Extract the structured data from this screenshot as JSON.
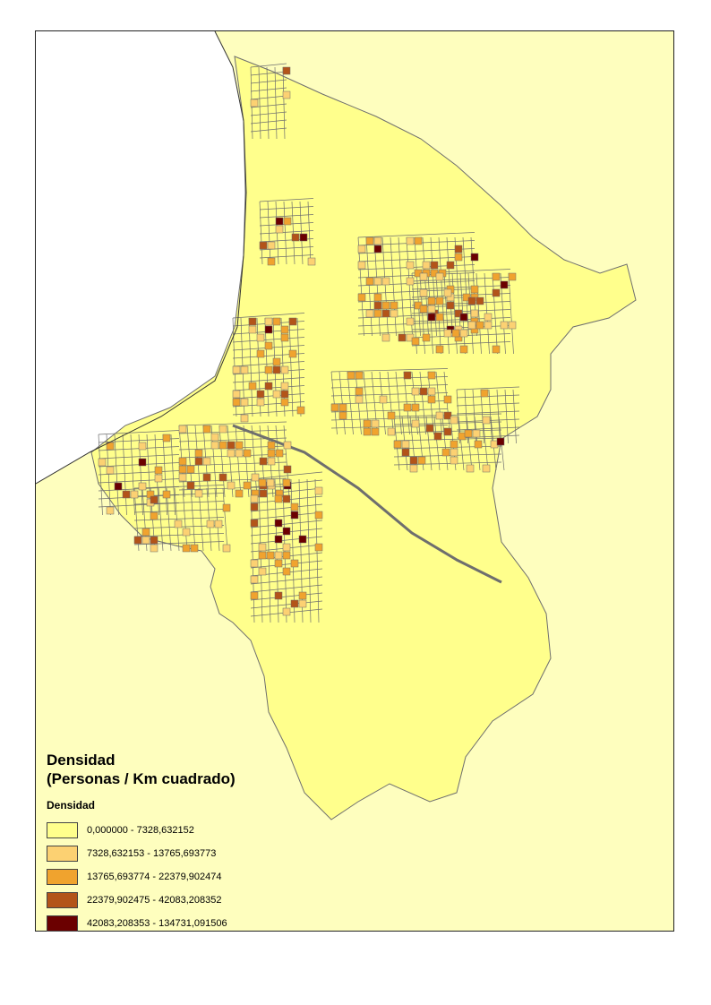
{
  "map": {
    "colors": {
      "sea": "#ffffff",
      "land": "#fefebe",
      "street": "#6e6e6e"
    }
  },
  "legend": {
    "title": "Densidad\n(Personas / Km cuadrado)",
    "subtitle": "Densidad",
    "classes": [
      {
        "label": "0,000000 - 7328,632152",
        "color": "#ffff8c"
      },
      {
        "label": "7328,632153 - 13765,693773",
        "color": "#fcd172"
      },
      {
        "label": "13765,693774 - 22379,902474",
        "color": "#f0a32e"
      },
      {
        "label": "22379,902475 - 42083,208352",
        "color": "#b35419"
      },
      {
        "label": "42083,208353 - 134731,091506",
        "color": "#6b0000"
      }
    ]
  }
}
